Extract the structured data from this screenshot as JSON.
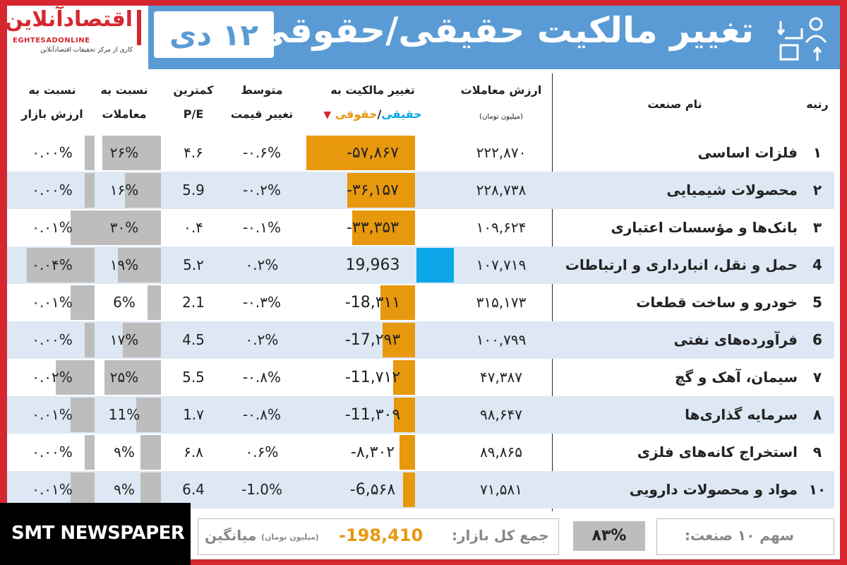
{
  "header": {
    "title": "تغییر مالکیت حقیقی/حقوقی",
    "date": "۱۲ دی",
    "logo_fa": "اقتصادآنلاین",
    "logo_en": "EGHTESADONLINE",
    "logo_sub": "کاری از مرکز تحقیقات اقتصادآنلاین"
  },
  "columns": {
    "rank": "رتبه",
    "name": "نام صنعت",
    "value_l1": "ارزش معاملات",
    "value_l2": "(میلیون تومان)",
    "change_l1": "تغییر مالکیت به",
    "change_l2a": "حقیقی",
    "change_sep": "/",
    "change_l2b": "حقوقی",
    "price_l1": "متوسط",
    "price_l2": "تغییر قیمت",
    "pe_l1": "کمترین",
    "pe_l2": "P/E",
    "trade_l1": "نسبت به",
    "trade_l2": "معاملات",
    "market_l1": "نسبت به",
    "market_l2": "ارزش بازار"
  },
  "rows": [
    {
      "rank": "۱",
      "name": "فلزات اساسی",
      "value": "۲۲۲,۸۷۰",
      "change": "-۵۷,۸۶۷",
      "change_num": -57867,
      "price_change": "-۰.۶%",
      "pe": "۴.۶",
      "trade_ratio": "۲۶%",
      "trade_num": 26,
      "market_ratio": "۰.۰۰%",
      "market_num": 0.0
    },
    {
      "rank": "۲",
      "name": "محصولات شیمیایی",
      "value": "۲۲۸,۷۳۸",
      "change": "-۳۶,۱۵۷",
      "change_num": -36157,
      "price_change": "-۰.۲%",
      "pe": "5.9",
      "trade_ratio": "۱۶%",
      "trade_num": 16,
      "market_ratio": "۰.۰۰%",
      "market_num": 0.0
    },
    {
      "rank": "۳",
      "name": "بانک‌ها و مؤسسات اعتباری",
      "value": "۱۰۹,۶۲۴",
      "change": "-۳۳,۳۵۳",
      "change_num": -33353,
      "price_change": "-۰.۱%",
      "pe": "۰.۴",
      "trade_ratio": "۳۰%",
      "trade_num": 30,
      "market_ratio": "۰.۰۱%",
      "market_num": 0.01
    },
    {
      "rank": "4",
      "name": "حمل و نقل، انبارداری و ارتباطات",
      "value": "۱۰۷,۷۱۹",
      "change": "19,963",
      "change_num": 19963,
      "price_change": "۰.۲%",
      "pe": "5.۲",
      "trade_ratio": "۱۹%",
      "trade_num": 19,
      "market_ratio": "۰.۰۴%",
      "market_num": 0.04
    },
    {
      "rank": "5",
      "name": "خودرو و ساخت قطعات",
      "value": "۳۱۵,۱۷۳",
      "change": "-18,۳۱۱",
      "change_num": -18311,
      "price_change": "-۰.۳%",
      "pe": "2.1",
      "trade_ratio": "6%",
      "trade_num": 6,
      "market_ratio": "۰.۰۱%",
      "market_num": 0.01
    },
    {
      "rank": "6",
      "name": "فرآورده‌های نفتی",
      "value": "۱۰۰,۷۹۹",
      "change": "-17,۲۹۳",
      "change_num": -17293,
      "price_change": "۰.۲%",
      "pe": "4.5",
      "trade_ratio": "۱۷%",
      "trade_num": 17,
      "market_ratio": "۰.۰۰%",
      "market_num": 0.0
    },
    {
      "rank": "۷",
      "name": "سیمان، آهک و گچ",
      "value": "۴۷,۳۸۷",
      "change": "-11,۷۱۲",
      "change_num": -11712,
      "price_change": "-۰.۸%",
      "pe": "5.5",
      "trade_ratio": "۲۵%",
      "trade_num": 25,
      "market_ratio": "۰.۰۲%",
      "market_num": 0.02
    },
    {
      "rank": "۸",
      "name": "سرمایه گذاری‌ها",
      "value": "۹۸,۶۴۷",
      "change": "-11,۳۰۹",
      "change_num": -11309,
      "price_change": "-۰.۸%",
      "pe": "1.۷",
      "trade_ratio": "11%",
      "trade_num": 11,
      "market_ratio": "۰.۰۱%",
      "market_num": 0.01
    },
    {
      "rank": "۹",
      "name": "استخراج کانه‌های فلزی",
      "value": "۸۹,۸۶۵",
      "change": "-۸,۳۰۲",
      "change_num": -8302,
      "price_change": "۰.۶%",
      "pe": "۶.۸",
      "trade_ratio": "۹%",
      "trade_num": 9,
      "market_ratio": "۰.۰۰%",
      "market_num": 0.0
    },
    {
      "rank": "۱۰",
      "name": "مواد و محصولات دارویی",
      "value": "۷۱,۵۸۱",
      "change": "-6,۵۶۸",
      "change_num": -6568,
      "price_change": "-1.0%",
      "pe": "6.4",
      "trade_ratio": "۹%",
      "trade_num": 9,
      "market_ratio": "۰.۰۱%",
      "market_num": 0.01
    }
  ],
  "footer": {
    "share_label": "سهم ۱۰ صنعت:",
    "share_value": "۸۳%",
    "share_num": 83,
    "total_label": "جمع کل بازار:",
    "total_value": "-198,410",
    "unit": "(میلیون تومان)",
    "avg_label": "میانگین"
  },
  "watermark": "SMT NEWSPAPER",
  "colors": {
    "frame": "#d6262f",
    "header": "#5b9bd5",
    "negative": "#e8980d",
    "positive": "#0ca6e8",
    "gray_bar": "#bdbdbd",
    "row_alt": "#dde8f4"
  }
}
